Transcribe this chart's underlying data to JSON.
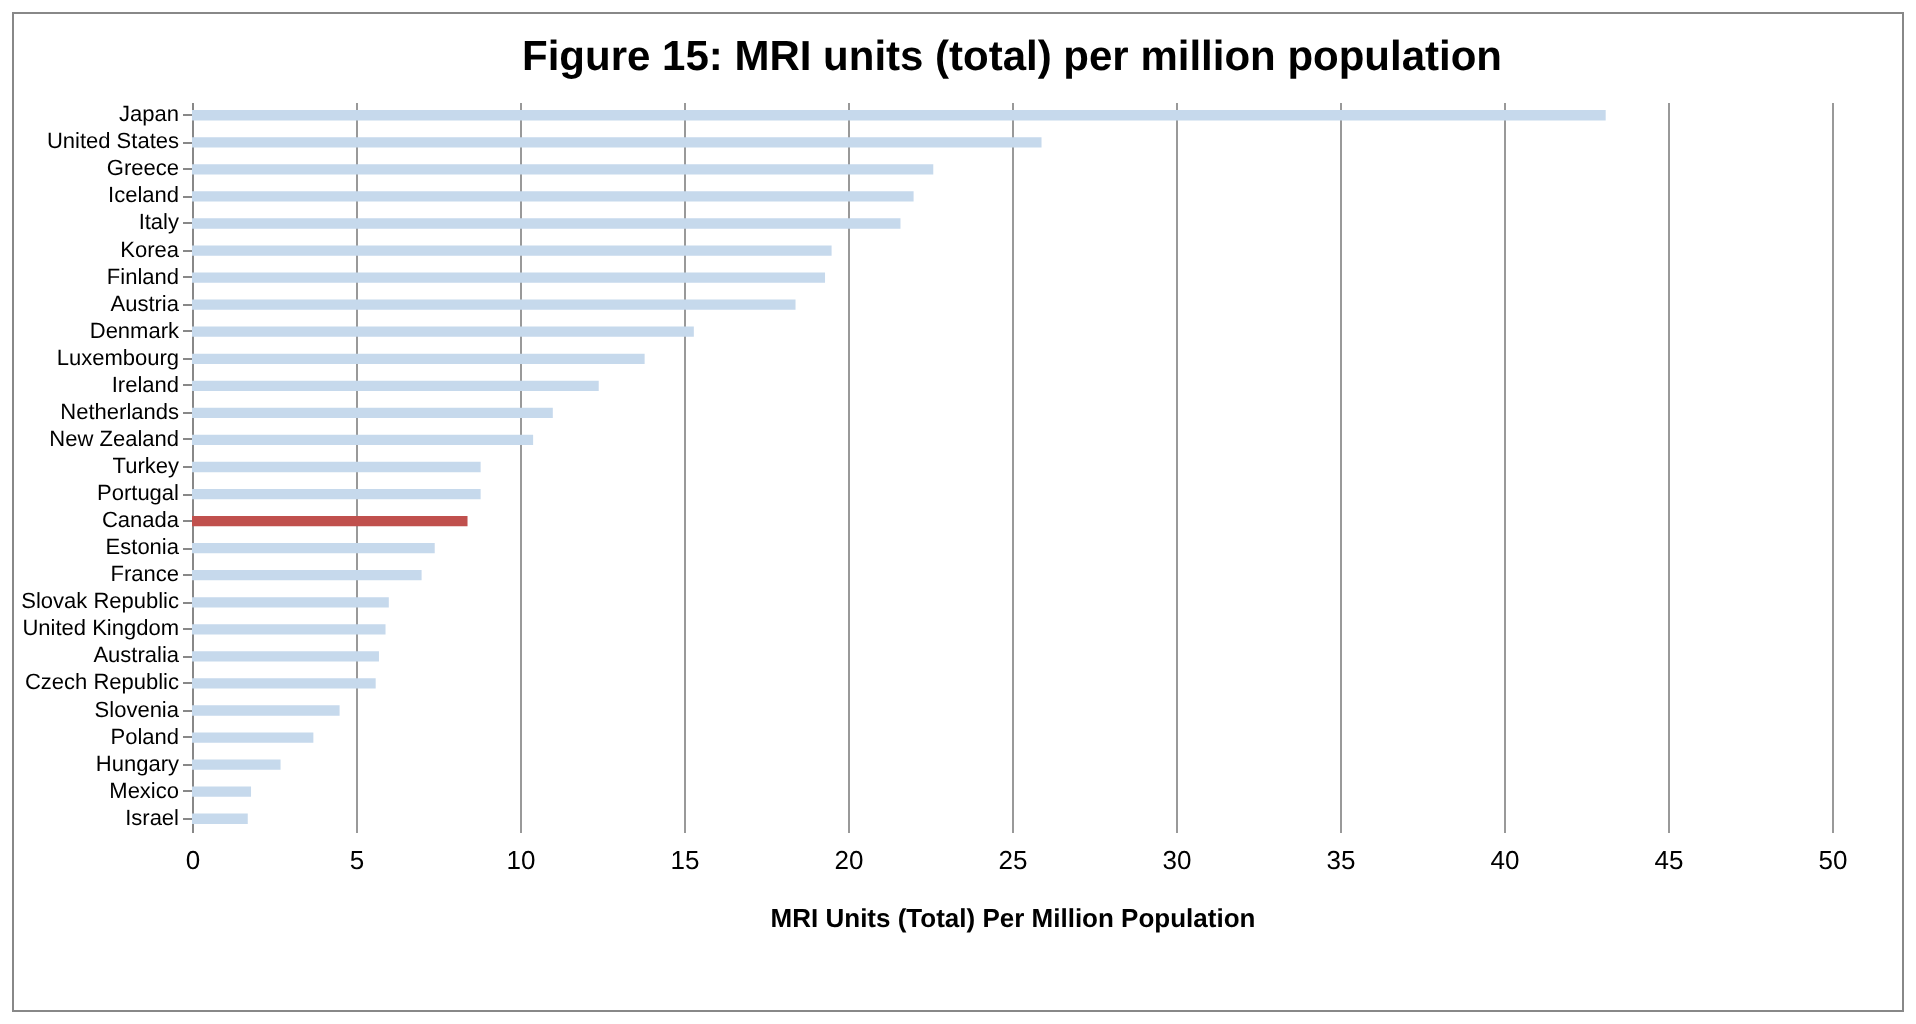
{
  "chart_data": {
    "type": "bar",
    "orientation": "horizontal",
    "title": "Figure 15: MRI units (total) per million population",
    "xlabel": "MRI Units (Total) Per Million Population",
    "categories": [
      "Japan",
      "United States",
      "Greece",
      "Iceland",
      "Italy",
      "Korea",
      "Finland",
      "Austria",
      "Denmark",
      "Luxembourg",
      "Ireland",
      "Netherlands",
      "New Zealand",
      "Turkey",
      "Portugal",
      "Canada",
      "Estonia",
      "France",
      "Slovak Republic",
      "United Kingdom",
      "Australia",
      "Czech Republic",
      "Slovenia",
      "Poland",
      "Hungary",
      "Mexico",
      "Israel"
    ],
    "values": [
      43.1,
      25.9,
      22.6,
      22.0,
      21.6,
      19.5,
      19.3,
      18.4,
      15.3,
      13.8,
      12.4,
      11.0,
      10.4,
      8.8,
      8.8,
      8.4,
      7.4,
      7.0,
      6.0,
      5.9,
      5.7,
      5.6,
      4.5,
      3.7,
      2.7,
      1.8,
      1.7
    ],
    "colors": [
      "#c6d9ec",
      "#c6d9ec",
      "#c6d9ec",
      "#c6d9ec",
      "#c6d9ec",
      "#c6d9ec",
      "#c6d9ec",
      "#c6d9ec",
      "#c6d9ec",
      "#c6d9ec",
      "#c6d9ec",
      "#c6d9ec",
      "#c6d9ec",
      "#c6d9ec",
      "#c6d9ec",
      "#c0504d",
      "#c6d9ec",
      "#c6d9ec",
      "#c6d9ec",
      "#c6d9ec",
      "#c6d9ec",
      "#c6d9ec",
      "#c6d9ec",
      "#c6d9ec",
      "#c6d9ec",
      "#c6d9ec",
      "#c6d9ec"
    ],
    "xlim": [
      0,
      50
    ],
    "xticks": [
      0,
      5,
      10,
      15,
      20,
      25,
      30,
      35,
      40,
      45,
      50
    ],
    "grid": "x"
  }
}
